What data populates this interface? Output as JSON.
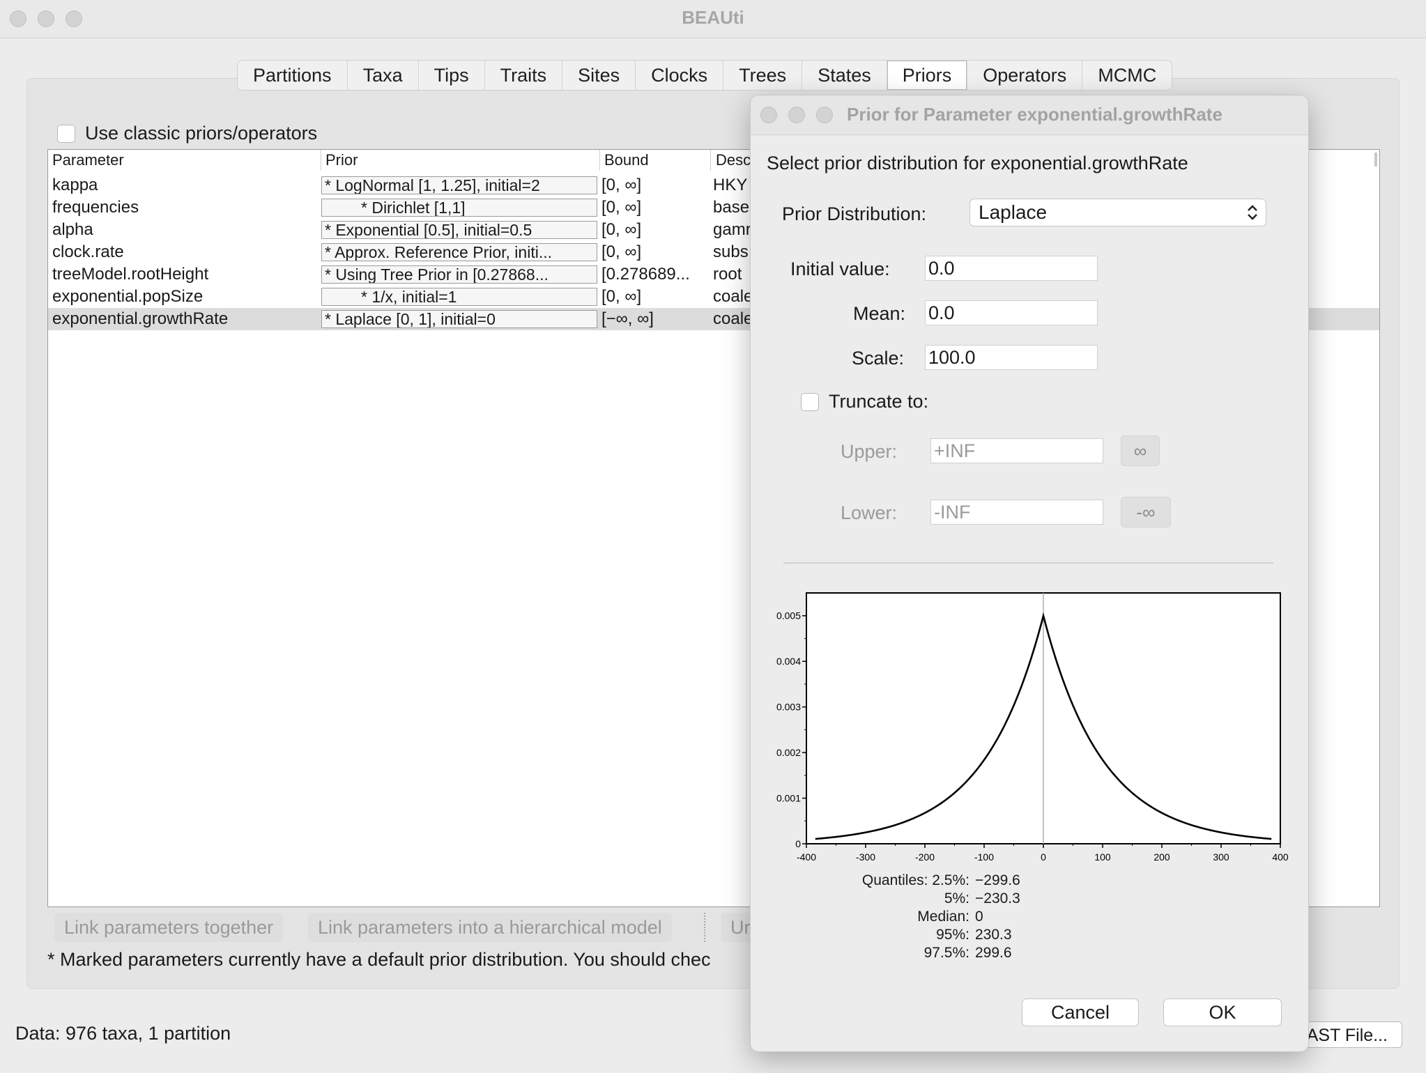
{
  "window": {
    "title": "BEAUti"
  },
  "tabs": [
    {
      "label": "Partitions"
    },
    {
      "label": "Taxa"
    },
    {
      "label": "Tips"
    },
    {
      "label": "Traits"
    },
    {
      "label": "Sites"
    },
    {
      "label": "Clocks"
    },
    {
      "label": "Trees"
    },
    {
      "label": "States"
    },
    {
      "label": "Priors",
      "active": true
    },
    {
      "label": "Operators"
    },
    {
      "label": "MCMC"
    }
  ],
  "classic_checkbox": {
    "label": "Use classic priors/operators",
    "checked": false
  },
  "table": {
    "headers": {
      "parameter": "Parameter",
      "prior": "Prior",
      "bound": "Bound",
      "description": "Desc"
    },
    "rows": [
      {
        "parameter": "kappa",
        "prior": "* LogNormal [1, 1.25], initial=2",
        "bound": "[0, ∞]",
        "description": "HKY"
      },
      {
        "parameter": "frequencies",
        "prior": "   * Dirichlet [1,1]",
        "bound": "[0, ∞]",
        "description": "base"
      },
      {
        "parameter": "alpha",
        "prior": "* Exponential [0.5], initial=0.5",
        "bound": "[0, ∞]",
        "description": "gamr"
      },
      {
        "parameter": "clock.rate",
        "prior": "* Approx. Reference Prior, initi...",
        "bound": "[0, ∞]",
        "description": "subs"
      },
      {
        "parameter": "treeModel.rootHeight",
        "prior": "* Using Tree Prior in [0.27868...",
        "bound": "[0.278689...",
        "description": "root"
      },
      {
        "parameter": "exponential.popSize",
        "prior": "   * 1/x, initial=1",
        "bound": "[0, ∞]",
        "description": "coale"
      },
      {
        "parameter": "exponential.growthRate",
        "prior": "* Laplace [0, 1], initial=0",
        "bound": "[−∞, ∞]",
        "description": "coale",
        "selected": true
      }
    ]
  },
  "buttons": {
    "link_together": "Link parameters together",
    "link_hierarchical": "Link parameters into a hierarchical model",
    "unlink_partial": "Ur"
  },
  "note": "* Marked parameters currently have a default prior distribution. You should chec",
  "status": "Data: 976 taxa, 1 partition",
  "generate_button": "EAST File...",
  "dialog": {
    "title": "Prior for Parameter exponential.growthRate",
    "heading": "Select prior distribution for exponential.growthRate",
    "distribution_label": "Prior Distribution:",
    "distribution_value": "Laplace",
    "initial_label": "Initial value:",
    "initial_value": "0.0",
    "mean_label": "Mean:",
    "mean_value": "0.0",
    "scale_label": "Scale:",
    "scale_value": "100.0",
    "truncate_label": "Truncate to:",
    "truncate_checked": false,
    "upper_label": "Upper:",
    "upper_value": "+INF",
    "upper_btn": "∞",
    "lower_label": "Lower:",
    "lower_value": "-INF",
    "lower_btn": "-∞",
    "quantiles": [
      {
        "label": "Quantiles: 2.5%:",
        "value": "−299.6"
      },
      {
        "label": "5%:",
        "value": "−230.3"
      },
      {
        "label": "Median:",
        "value": "0"
      },
      {
        "label": "95%:",
        "value": "230.3"
      },
      {
        "label": "97.5%:",
        "value": "299.6"
      }
    ],
    "cancel_label": "Cancel",
    "ok_label": "OK"
  },
  "chart_data": {
    "type": "line",
    "title": "",
    "xlabel": "",
    "ylabel": "",
    "xlim": [
      -400,
      400
    ],
    "ylim": [
      0,
      0.0055
    ],
    "x_ticks": [
      "-400",
      "-300",
      "-200",
      "-100",
      "0",
      "100",
      "200",
      "300",
      "400"
    ],
    "y_ticks": [
      "0",
      "0.001",
      "0.002",
      "0.003",
      "0.004",
      "0.005"
    ],
    "grid": false,
    "distribution": "laplace",
    "location": 0,
    "scale": 100,
    "peak": 0.005,
    "x_range": [
      -385,
      385
    ]
  }
}
